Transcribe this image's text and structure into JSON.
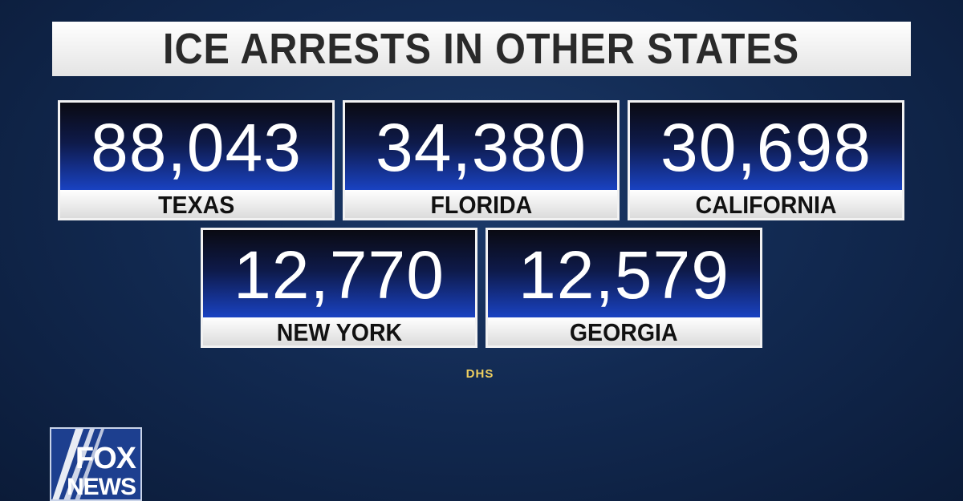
{
  "header": {
    "title": "ICE ARRESTS IN OTHER STATES"
  },
  "cards": [
    {
      "value": "88,043",
      "label": "TEXAS"
    },
    {
      "value": "34,380",
      "label": "FLORIDA"
    },
    {
      "value": "30,698",
      "label": "CALIFORNIA"
    },
    {
      "value": "12,770",
      "label": "NEW YORK"
    },
    {
      "value": "12,579",
      "label": "GEORGIA"
    }
  ],
  "source": "DHS",
  "logo": {
    "line1": "FOX",
    "line2": "NEWS"
  }
}
